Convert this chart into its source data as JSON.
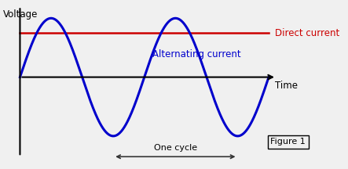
{
  "figsize": [
    4.43,
    2.16
  ],
  "dpi": 100,
  "bg_color": "#f0f0f0",
  "ac_color": "#0000cc",
  "dc_color": "#cc0000",
  "axis_color": "#000000",
  "arrow_color": "#333333",
  "ac_label": "Alternating current",
  "dc_label": "Direct current",
  "voltage_label": "Voltage",
  "time_label": "Time",
  "cycle_label": "One cycle",
  "figure_label": "Figure 1",
  "ac_amplitude": 1.0,
  "dc_level": 0.75,
  "x_start": 0.0,
  "x_end": 3.2,
  "period": 1.6,
  "ylim": [
    -1.55,
    1.3
  ],
  "xlim": [
    -0.25,
    3.9
  ]
}
